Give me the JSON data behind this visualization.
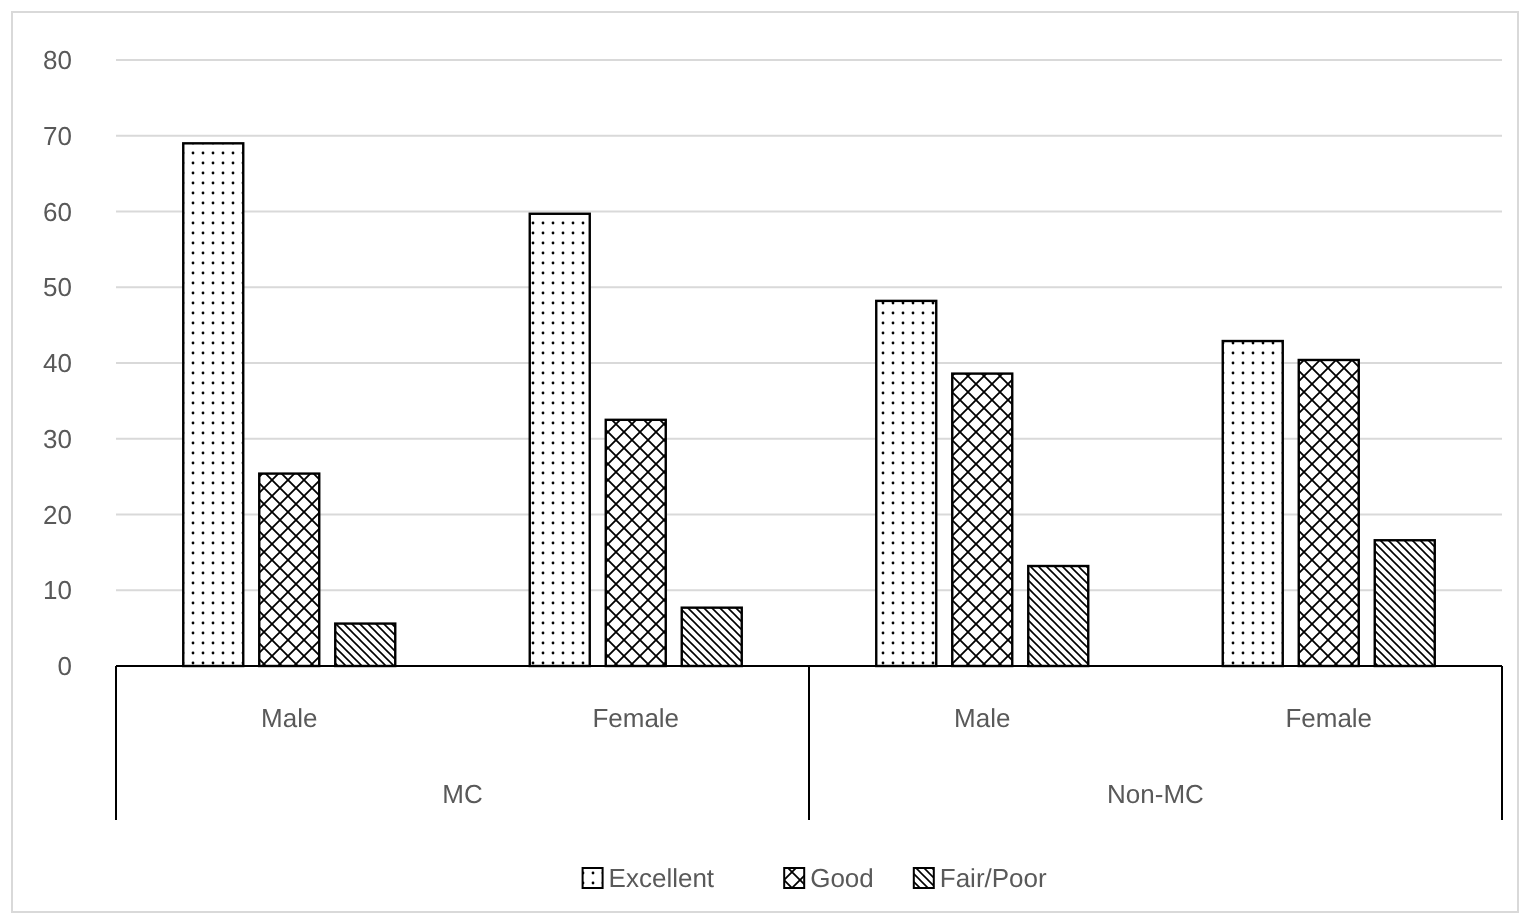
{
  "chart_data": {
    "type": "bar",
    "categories": [
      "Male",
      "Female",
      "Male",
      "Female"
    ],
    "series": [
      {
        "name": "Excellent",
        "color": "#000000",
        "values": [
          69.0,
          59.7,
          48.2,
          42.9
        ]
      },
      {
        "name": "Good",
        "color": "#000000",
        "values": [
          25.4,
          32.5,
          38.6,
          40.4
        ]
      },
      {
        "name": "Fair/Poor",
        "color": "#000000",
        "values": [
          5.6,
          7.7,
          13.2,
          16.6
        ]
      }
    ],
    "annotations": [
      "MC",
      "Non-MC"
    ],
    "ylim": [
      0,
      80
    ],
    "yticks": [
      0,
      10,
      20,
      30,
      40,
      50,
      60,
      70,
      80
    ],
    "grid": "y",
    "legend": "bottom"
  }
}
